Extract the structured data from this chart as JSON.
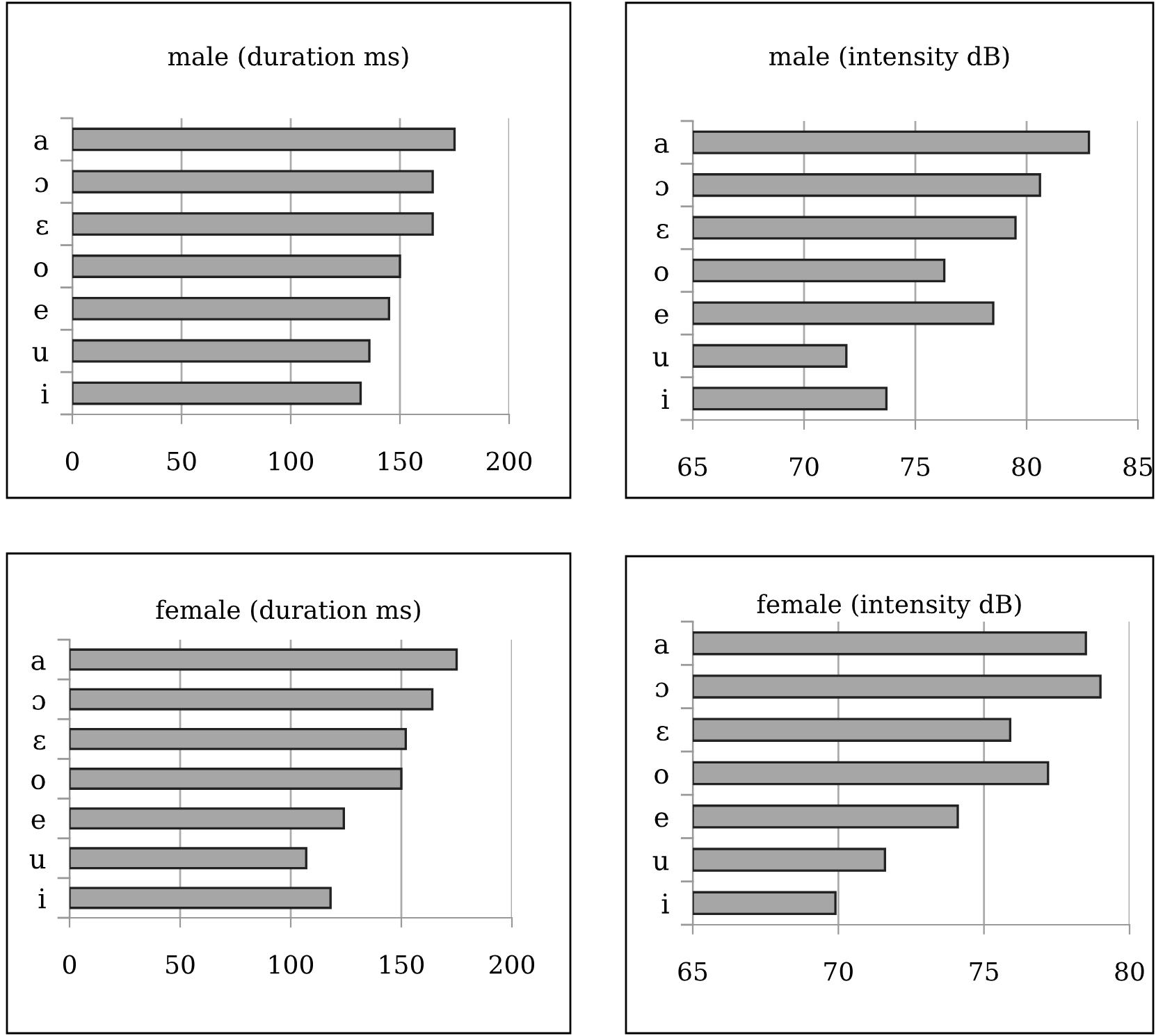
{
  "chart_data": [
    {
      "type": "bar",
      "orientation": "horizontal",
      "title": "male (duration ms)",
      "categories": [
        "a",
        "ɔ",
        "ɛ",
        "o",
        "e",
        "u",
        "i"
      ],
      "series": [
        {
          "color": "#a6a6a6",
          "values": [
            175,
            165,
            165,
            150,
            145,
            136,
            132
          ]
        }
      ],
      "xlim": [
        0,
        200
      ],
      "xticks": [
        0,
        50,
        100,
        150,
        200
      ],
      "grid": "x"
    },
    {
      "type": "bar",
      "orientation": "horizontal",
      "title": "male (intensity dB)",
      "categories": [
        "a",
        "ɔ",
        "ɛ",
        "o",
        "e",
        "u",
        "i"
      ],
      "series": [
        {
          "color": "#a6a6a6",
          "values": [
            82.8,
            80.6,
            79.5,
            76.3,
            78.5,
            71.9,
            73.7
          ]
        }
      ],
      "xlim": [
        65,
        85
      ],
      "xticks": [
        65,
        70,
        75,
        80,
        85
      ],
      "grid": "x"
    },
    {
      "type": "bar",
      "orientation": "horizontal",
      "title": "female (duration ms)",
      "categories": [
        "a",
        "ɔ",
        "ɛ",
        "o",
        "e",
        "u",
        "i"
      ],
      "series": [
        {
          "color": "#a6a6a6",
          "values": [
            175,
            164,
            152,
            150,
            124,
            107,
            118
          ]
        }
      ],
      "xlim": [
        0,
        200
      ],
      "xticks": [
        0,
        50,
        100,
        150,
        200
      ],
      "grid": "x"
    },
    {
      "type": "bar",
      "orientation": "horizontal",
      "title": "female (intensity dB)",
      "categories": [
        "a",
        "ɔ",
        "ɛ",
        "o",
        "e",
        "u",
        "i"
      ],
      "series": [
        {
          "color": "#a6a6a6",
          "values": [
            78.5,
            79.0,
            75.9,
            77.2,
            74.1,
            71.6,
            69.9
          ]
        }
      ],
      "xlim": [
        65,
        80
      ],
      "xticks": [
        65,
        70,
        75,
        80
      ],
      "grid": "x"
    }
  ]
}
